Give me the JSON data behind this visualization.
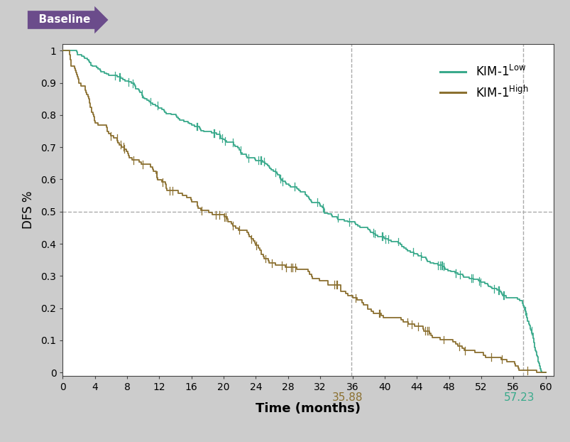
{
  "title": "Baseline",
  "title_bg_color": "#6B4C8B",
  "title_text_color": "#ffffff",
  "bg_color": "#cccccc",
  "plot_bg_color": "#ffffff",
  "xlabel": "Time (months)",
  "ylabel": "DFS %",
  "xlim": [
    0,
    61
  ],
  "ylim": [
    0,
    1.02
  ],
  "xticks": [
    0,
    4,
    8,
    12,
    16,
    20,
    24,
    28,
    32,
    36,
    40,
    44,
    48,
    52,
    56,
    60
  ],
  "yticks": [
    0,
    0.1,
    0.2,
    0.3,
    0.4,
    0.5,
    0.6,
    0.7,
    0.8,
    0.9,
    1
  ],
  "kim1_low_color": "#3aaa8c",
  "kim1_high_color": "#8B7030",
  "median_low": 57.23,
  "median_high": 35.88,
  "dfs_line_y": 0.5,
  "annotation_35_label": "35.88",
  "annotation_57_label": "57.23"
}
